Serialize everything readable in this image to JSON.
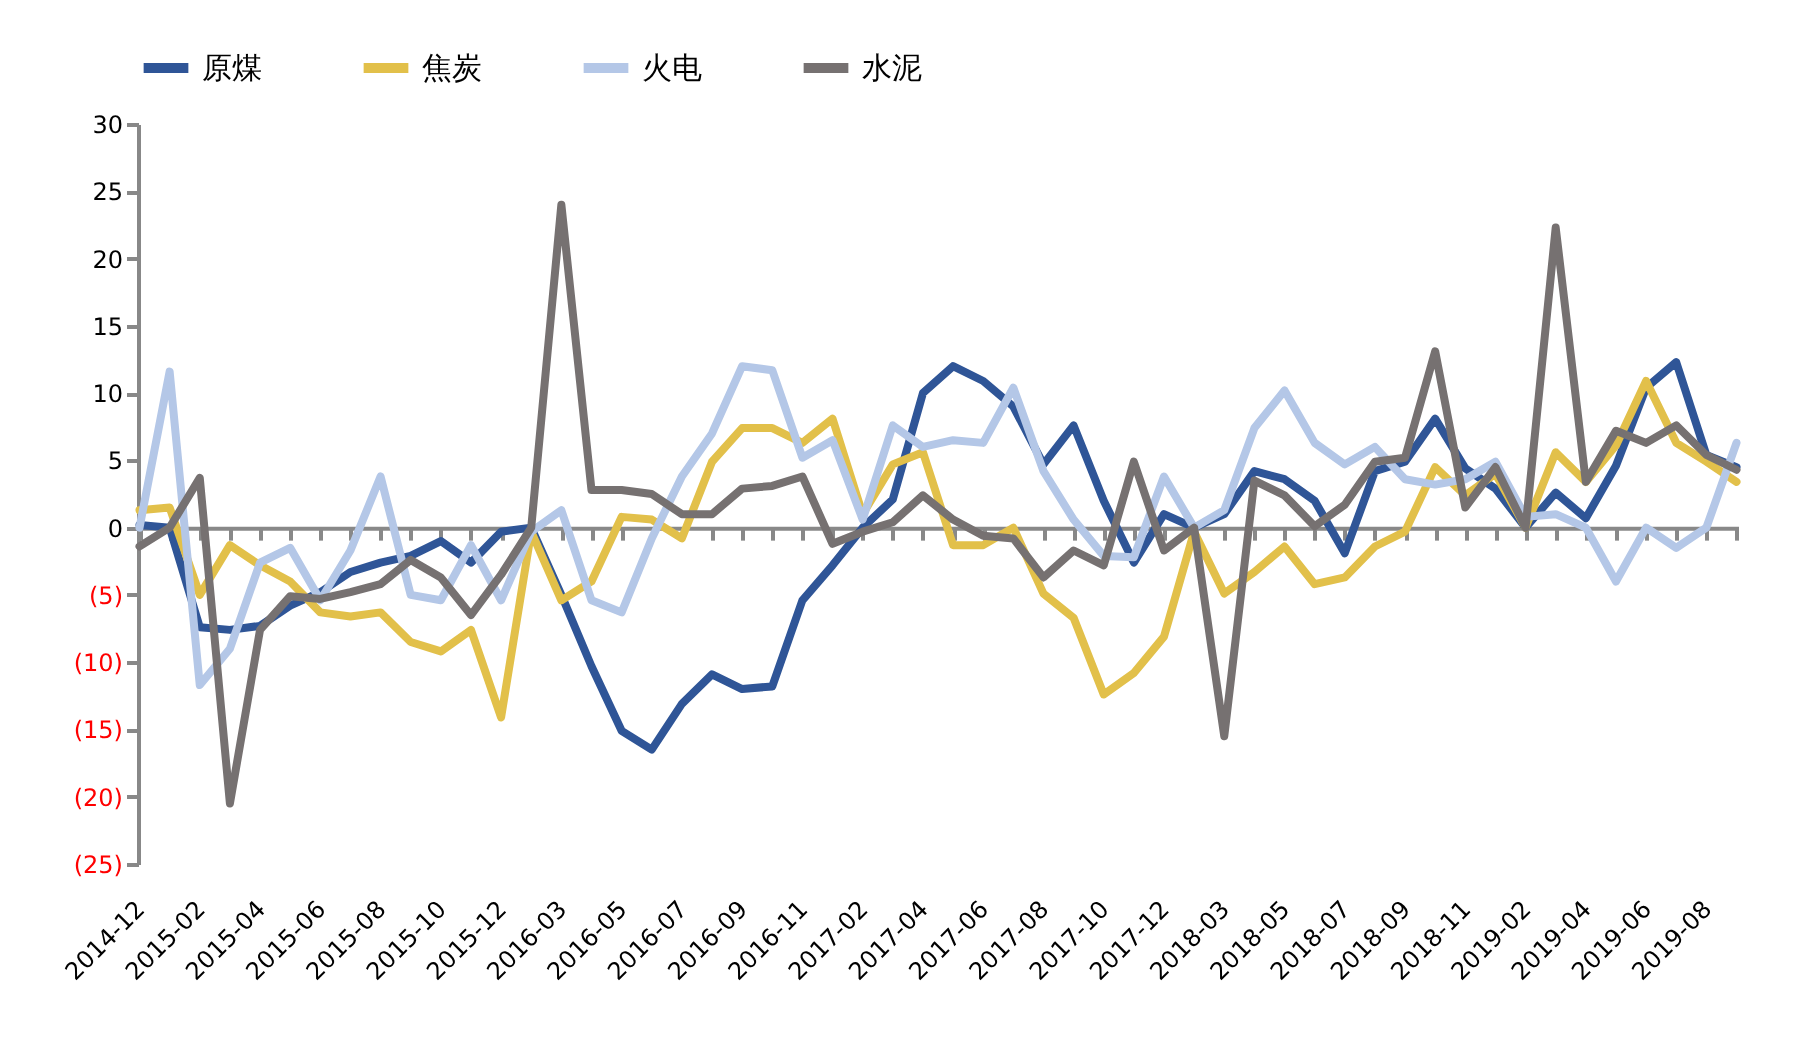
{
  "chart_data": {
    "type": "line",
    "categories": [
      "2014-12",
      null,
      "2015-02",
      null,
      "2015-04",
      null,
      "2015-06",
      null,
      "2015-08",
      null,
      "2015-10",
      null,
      "2015-12",
      null,
      "2016-03",
      null,
      "2016-05",
      null,
      "2016-07",
      null,
      "2016-09",
      null,
      "2016-11",
      null,
      "2017-02",
      null,
      "2017-04",
      null,
      "2017-06",
      null,
      "2017-08",
      null,
      "2017-10",
      null,
      "2017-12",
      null,
      "2018-03",
      null,
      "2018-05",
      null,
      "2018-07",
      null,
      "2018-09",
      null,
      "2018-11",
      null,
      "2019-02",
      null,
      "2019-04",
      null,
      "2019-06",
      null,
      "2019-08",
      null
    ],
    "series": [
      {
        "name": "原煤",
        "color": "#2f5597",
        "values": [
          0.2,
          0,
          -7.4,
          -7.6,
          -7.3,
          -5.8,
          -4.8,
          -3.3,
          -2.6,
          -2.1,
          -1.0,
          -2.6,
          -0.3,
          0,
          -5,
          -10.3,
          -15.1,
          -16.5,
          -13.1,
          -10.9,
          -12.0,
          -11.8,
          -5.4,
          -2.8,
          0,
          2.1,
          10.0,
          12.0,
          10.9,
          9.0,
          4.7,
          7.6,
          2.0,
          -2.6,
          1.0,
          0,
          1.0,
          4.2,
          3.6,
          2.0,
          -1.9,
          4.2,
          4.9,
          8.1,
          4.4,
          2.9,
          0,
          2.6,
          0.7,
          4.6,
          10.4,
          12.3,
          5.4,
          4.5
        ]
      },
      {
        "name": "焦炭",
        "color": "#e2c04a",
        "values": [
          1.3,
          1.5,
          -5,
          -1.3,
          -2.8,
          -4.0,
          -6.3,
          -6.6,
          -6.3,
          -8.5,
          -9.2,
          -7.6,
          -14.1,
          -0.3,
          -5.4,
          -4.0,
          0.8,
          0.6,
          -0.8,
          4.9,
          7.4,
          7.4,
          6.3,
          8.1,
          1.0,
          4.7,
          5.6,
          -1.3,
          -1.3,
          0,
          -4.9,
          -6.7,
          -12.4,
          -10.8,
          -8.1,
          -0.3,
          -4.9,
          -3.3,
          -1.4,
          -4.2,
          -3.7,
          -1.4,
          -0.3,
          4.5,
          2.4,
          4.0,
          0,
          5.6,
          3.4,
          6.1,
          10.9,
          6.3,
          4.9,
          3.4
        ]
      },
      {
        "name": "火电",
        "color": "#b4c7e7",
        "values": [
          0,
          11.6,
          -11.7,
          -9.0,
          -2.6,
          -1.5,
          -5.4,
          -1.7,
          3.8,
          -5,
          -5.4,
          -1.3,
          -5.4,
          -0.3,
          1.3,
          -5.4,
          -6.3,
          -0.8,
          3.8,
          7.0,
          12.0,
          11.7,
          5.2,
          6.5,
          0.6,
          7.6,
          6.0,
          6.5,
          6.3,
          10.4,
          4.2,
          0.6,
          -2.1,
          -2.2,
          3.8,
          0,
          1.3,
          7.4,
          10.2,
          6.3,
          4.7,
          6.0,
          3.6,
          3.2,
          3.6,
          4.9,
          0.8,
          1.0,
          0,
          -4.0,
          0,
          -1.5,
          0,
          6.3
        ]
      },
      {
        "name": "水泥",
        "color": "#767171",
        "values": [
          -1.4,
          0,
          3.7,
          -20.5,
          -7.6,
          -5.1,
          -5.3,
          -4.8,
          -4.2,
          -2.4,
          -3.7,
          -6.5,
          -3.5,
          0,
          24,
          2.8,
          2.8,
          2.5,
          1,
          1,
          2.9,
          3.1,
          3.8,
          -1.2,
          -0.3,
          0.4,
          2.4,
          0.6,
          -0.6,
          -0.8,
          -3.7,
          -1.7,
          -2.8,
          4.9,
          -1.7,
          0,
          -15.5,
          3.5,
          2.4,
          0.1,
          1.7,
          4.9,
          5.2,
          13.1,
          1.5,
          4.5,
          0,
          22.3,
          3.4,
          7.2,
          6.3,
          7.6,
          5.4,
          4.3
        ]
      }
    ],
    "ylim": [
      -25,
      30
    ],
    "yticks": [
      {
        "value": -25,
        "label": "(25)"
      },
      {
        "value": -20,
        "label": "(20)"
      },
      {
        "value": -15,
        "label": "(15)"
      },
      {
        "value": -10,
        "label": "(10)"
      },
      {
        "value": -5,
        "label": "(5)"
      },
      0,
      5,
      10,
      15,
      20,
      25,
      30
    ],
    "legend": "top",
    "marker": "none",
    "line_style": "solid"
  }
}
